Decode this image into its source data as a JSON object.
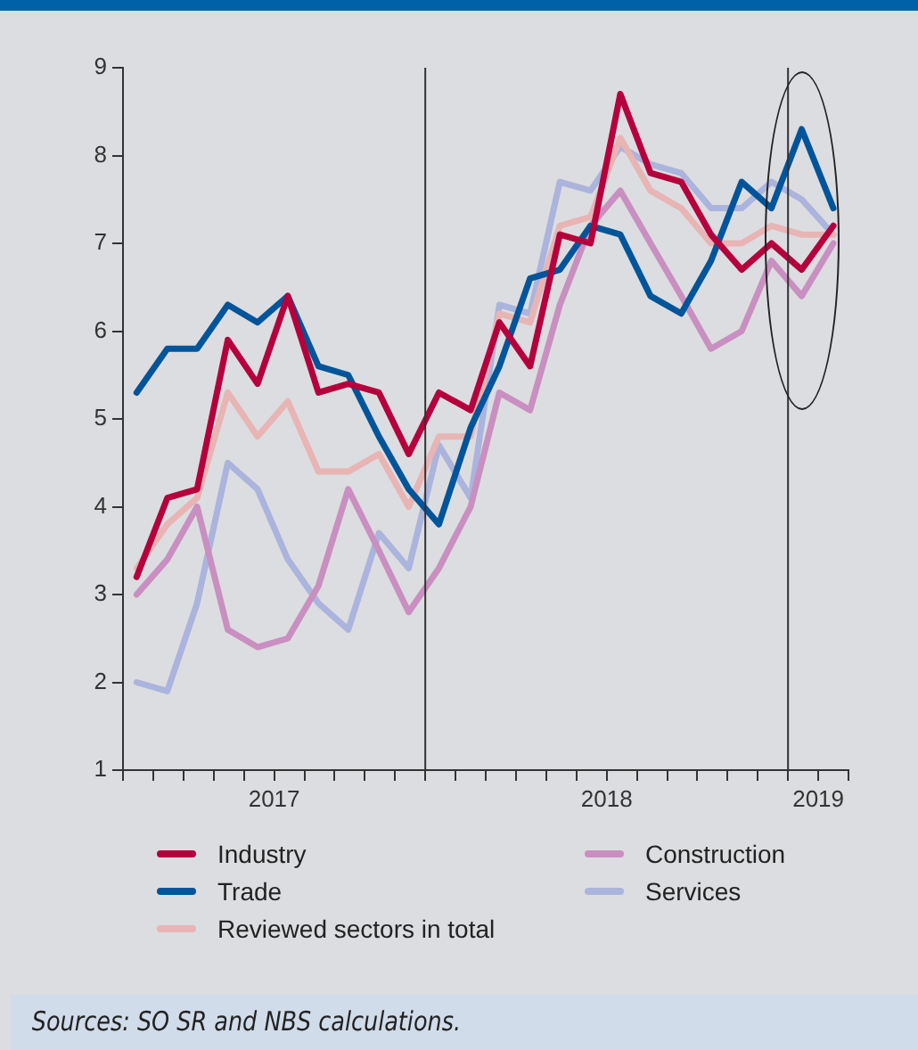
{
  "chart_data": {
    "type": "line",
    "x": [
      "2017-03-15",
      "2017-04-15",
      "2017-05-15",
      "2017-06-15",
      "2017-07-15",
      "2017-08-15",
      "2017-09-15",
      "2017-10-15",
      "2017-11-15",
      "2017-12-15",
      "2018-01-15",
      "2018-02-15",
      "2018-03-15",
      "2018-04-15",
      "2018-05-15",
      "2018-06-15",
      "2018-07-15",
      "2018-08-15",
      "2018-09-15",
      "2018-10-15",
      "2018-11-15",
      "2018-12-15",
      "2019-01-15",
      "2019-02-15"
    ],
    "series": [
      {
        "name": "Industry",
        "color": "#b5003c",
        "values": [
          3.2,
          4.1,
          4.2,
          5.9,
          5.4,
          6.4,
          5.3,
          5.4,
          5.3,
          4.6,
          5.3,
          5.1,
          6.1,
          5.6,
          7.1,
          7.0,
          8.7,
          7.8,
          7.7,
          7.1,
          6.7,
          7.0,
          6.7,
          7.2
        ]
      },
      {
        "name": "Trade",
        "color": "#00559a",
        "values": [
          5.3,
          5.8,
          5.8,
          6.3,
          6.1,
          6.4,
          5.6,
          5.5,
          4.8,
          4.2,
          3.8,
          4.9,
          5.6,
          6.6,
          6.7,
          7.2,
          7.1,
          6.4,
          6.2,
          6.8,
          7.7,
          7.4,
          8.3,
          7.4
        ]
      },
      {
        "name": "Reviewed sectors in total",
        "color": "#e8b4b4",
        "values": [
          3.3,
          3.8,
          4.1,
          5.3,
          4.8,
          5.2,
          4.4,
          4.4,
          4.6,
          4.0,
          4.8,
          4.8,
          6.2,
          6.1,
          7.2,
          7.3,
          8.2,
          7.6,
          7.4,
          7.0,
          7.0,
          7.2,
          7.1,
          7.1
        ]
      },
      {
        "name": "Construction",
        "color": "#c98fc0",
        "values": [
          3.0,
          3.4,
          4.0,
          2.6,
          2.4,
          2.5,
          3.1,
          4.2,
          3.5,
          2.8,
          3.3,
          4.0,
          5.3,
          5.1,
          6.3,
          7.2,
          7.6,
          7.0,
          6.4,
          5.8,
          6.0,
          6.8,
          6.4,
          7.0
        ]
      },
      {
        "name": "Services",
        "color": "#aab4dd",
        "values": [
          2.0,
          1.9,
          2.9,
          4.5,
          4.2,
          3.4,
          2.9,
          2.6,
          3.7,
          3.3,
          4.7,
          4.1,
          6.3,
          6.2,
          7.7,
          7.6,
          8.1,
          7.9,
          7.8,
          7.4,
          7.4,
          7.7,
          7.5,
          7.1
        ]
      }
    ],
    "xlim": [
      "2017-03-01",
      "2019-03-01"
    ],
    "xticks": [
      {
        "value": "2017-03-01",
        "label": null
      },
      {
        "value": "2017-04-01",
        "label": null
      },
      {
        "value": "2017-05-01",
        "label": null
      },
      {
        "value": "2017-06-01",
        "label": null
      },
      {
        "value": "2017-07-01",
        "label": null
      },
      {
        "value": "2017-08-01",
        "label": "2017"
      },
      {
        "value": "2017-09-01",
        "label": null
      },
      {
        "value": "2017-10-01",
        "label": null
      },
      {
        "value": "2017-11-01",
        "label": null
      },
      {
        "value": "2017-12-01",
        "label": null
      },
      {
        "value": "2018-01-01",
        "label": null
      },
      {
        "value": "2018-02-01",
        "label": null
      },
      {
        "value": "2018-03-01",
        "label": null
      },
      {
        "value": "2018-04-01",
        "label": null
      },
      {
        "value": "2018-05-01",
        "label": null
      },
      {
        "value": "2018-06-01",
        "label": null
      },
      {
        "value": "2018-07-01",
        "label": "2018"
      },
      {
        "value": "2018-08-01",
        "label": null
      },
      {
        "value": "2018-09-01",
        "label": null
      },
      {
        "value": "2018-10-01",
        "label": null
      },
      {
        "value": "2018-11-01",
        "label": null
      },
      {
        "value": "2018-12-01",
        "label": null
      },
      {
        "value": "2019-01-01",
        "label": null
      },
      {
        "value": "2019-02-01",
        "label": "2019"
      },
      {
        "value": "2019-03-01",
        "label": null
      }
    ],
    "ylim": [
      1,
      9
    ],
    "yticks": [
      1,
      2,
      3,
      4,
      5,
      6,
      7,
      8,
      9
    ],
    "ref_lines": [
      {
        "axis": "x",
        "value": "2018-01-01",
        "color": "#333333"
      },
      {
        "axis": "x",
        "value": "2019-01-01",
        "color": "#333333"
      }
    ],
    "grid": false,
    "legend": "bottom",
    "marker": "none",
    "line_style": "solid",
    "annotations": [
      "Sources: SO SR and NBS calculations."
    ]
  }
}
